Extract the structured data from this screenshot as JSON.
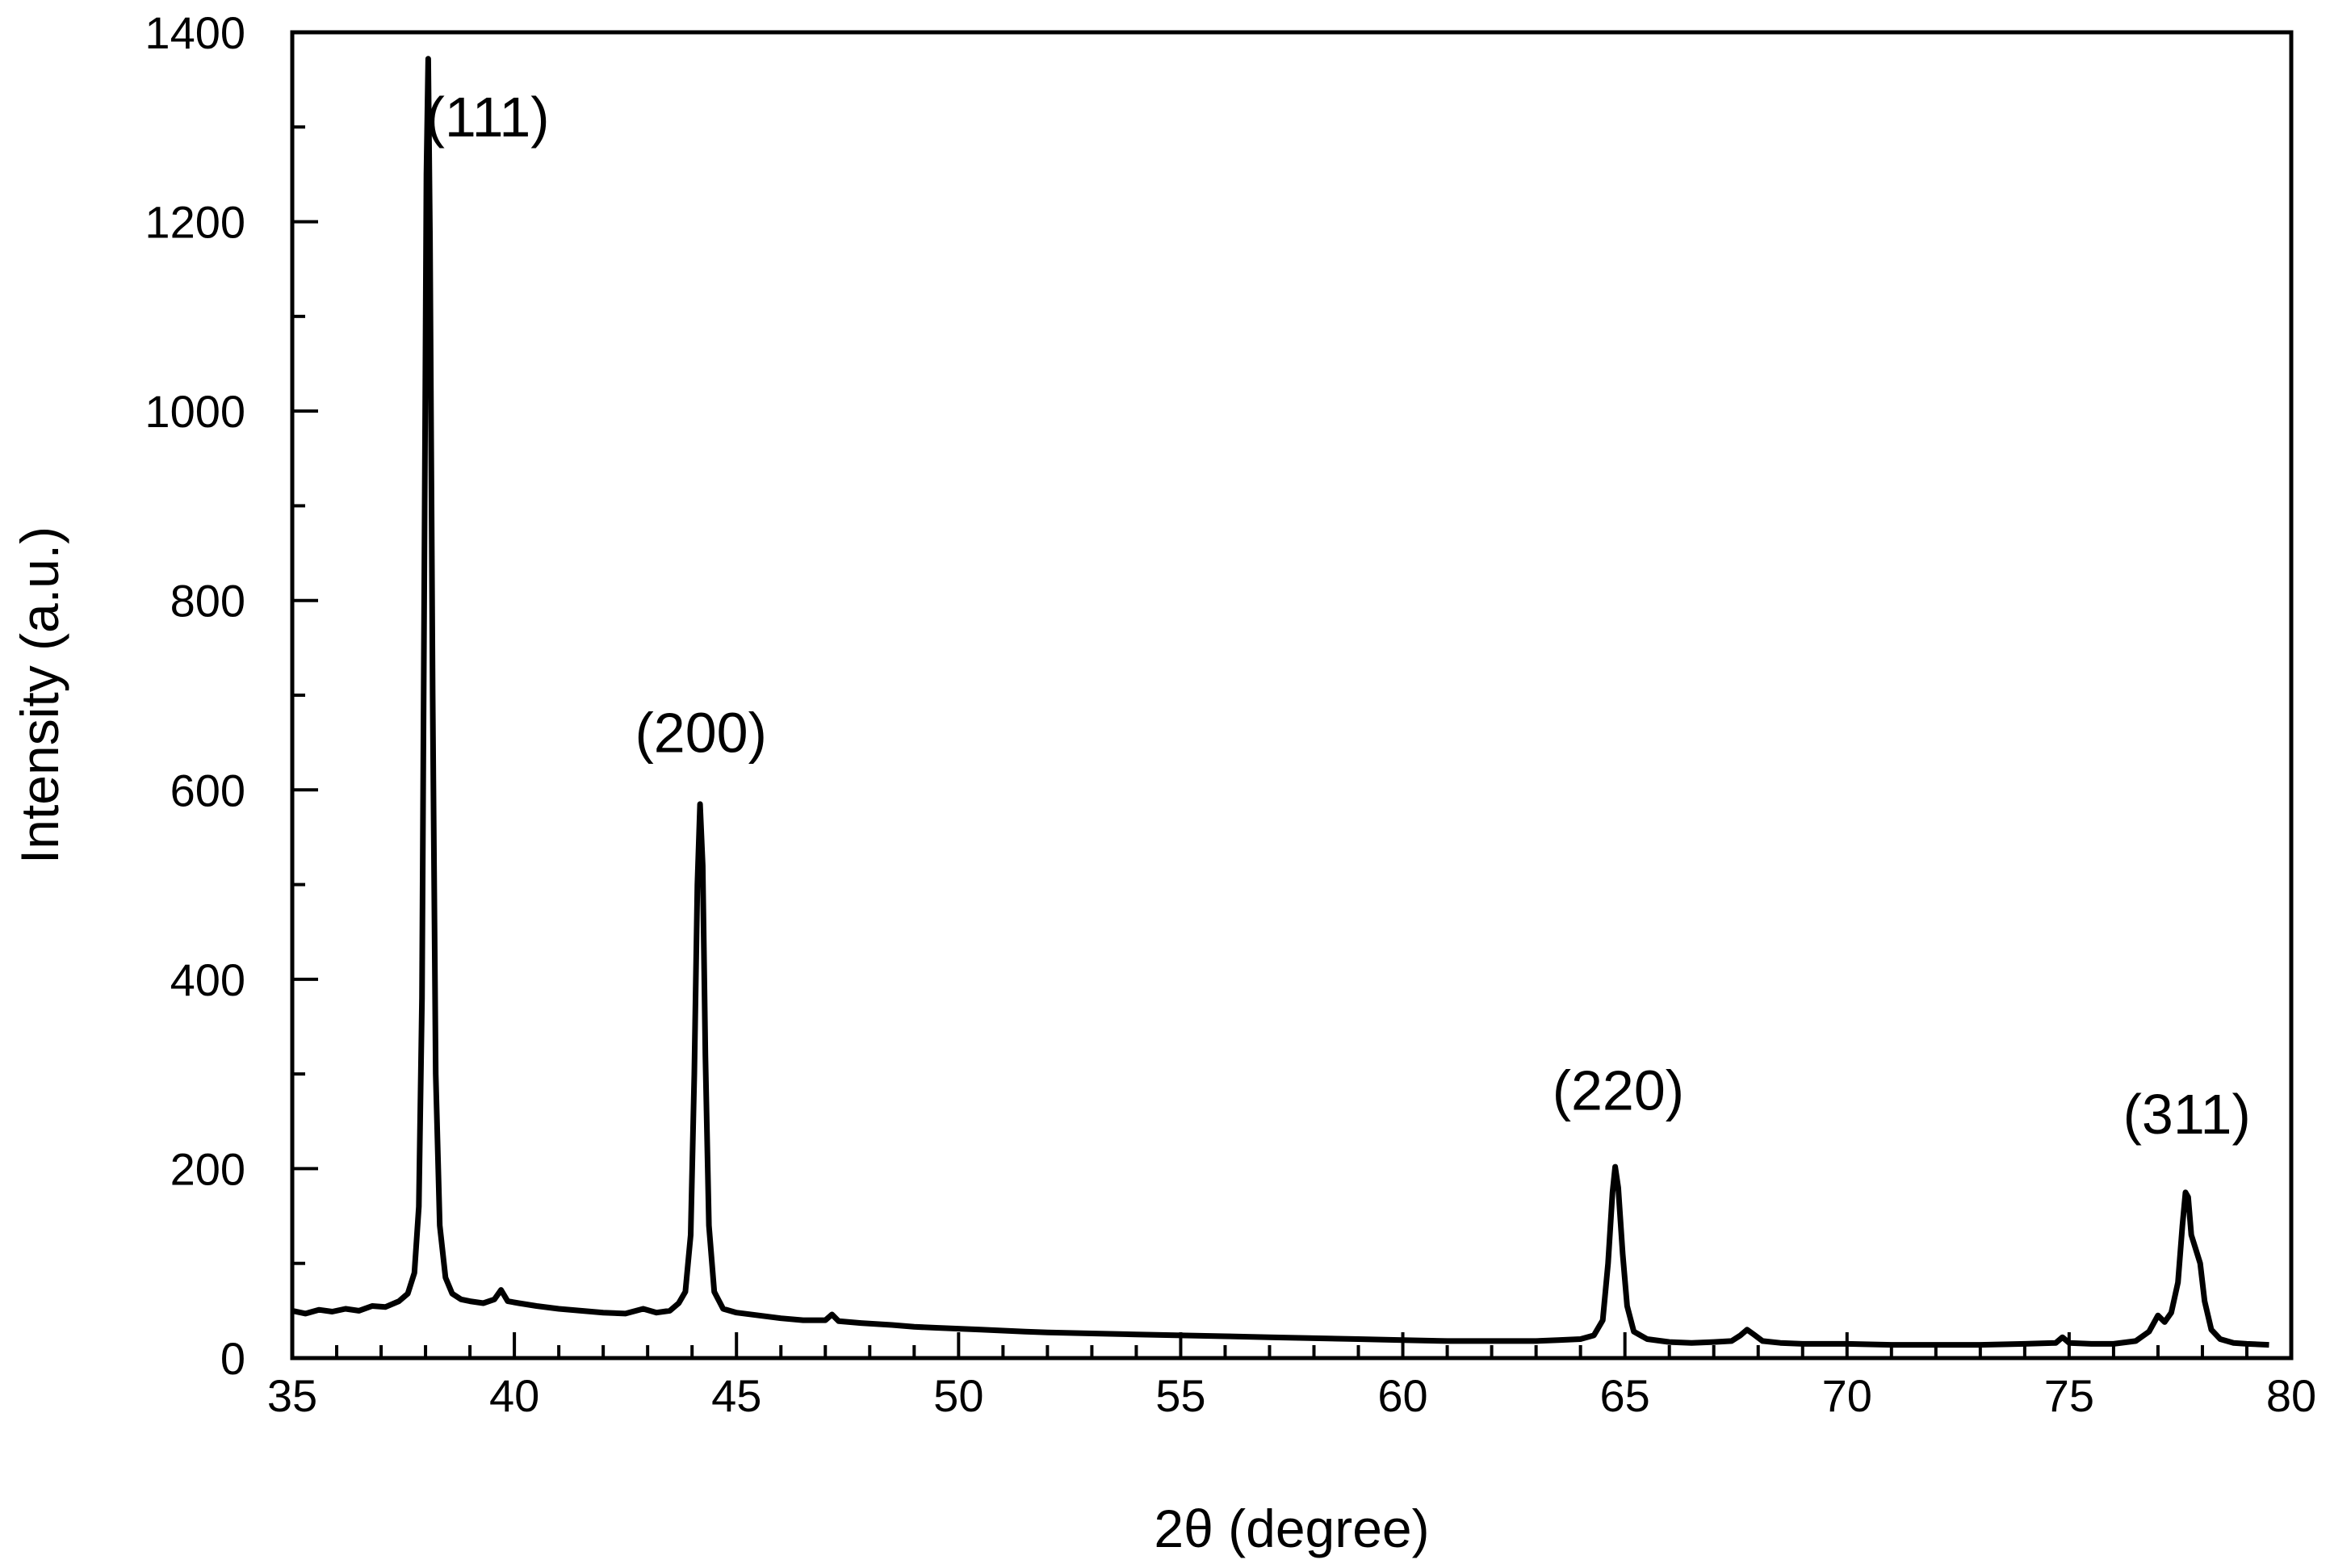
{
  "chart_data": {
    "type": "line",
    "xlabel": "2θ (degree)",
    "ylabel": "Intensity (a.u.)",
    "xlim": [
      35,
      80
    ],
    "ylim": [
      0,
      1400
    ],
    "x_ticks": [
      35,
      40,
      45,
      50,
      55,
      60,
      65,
      70,
      75,
      80
    ],
    "y_ticks": [
      0,
      200,
      400,
      600,
      800,
      1000,
      1200,
      1400
    ],
    "x_tick_labels": [
      "35",
      "40",
      "45",
      "50",
      "55",
      "60",
      "65",
      "70",
      "75",
      "80"
    ],
    "y_tick_labels": [
      "0",
      "200",
      "400",
      "600",
      "800",
      "1000",
      "1200",
      "1400"
    ],
    "grid": false,
    "series": [
      {
        "color": "#000000",
        "points": [
          [
            35.0,
            50
          ],
          [
            35.3,
            47
          ],
          [
            35.6,
            51
          ],
          [
            35.9,
            49
          ],
          [
            36.2,
            52
          ],
          [
            36.5,
            50
          ],
          [
            36.8,
            55
          ],
          [
            37.1,
            54
          ],
          [
            37.4,
            60
          ],
          [
            37.6,
            68
          ],
          [
            37.75,
            90
          ],
          [
            37.85,
            160
          ],
          [
            37.92,
            380
          ],
          [
            37.97,
            800
          ],
          [
            38.02,
            1250
          ],
          [
            38.06,
            1372
          ],
          [
            38.1,
            1180
          ],
          [
            38.16,
            700
          ],
          [
            38.23,
            300
          ],
          [
            38.32,
            140
          ],
          [
            38.45,
            85
          ],
          [
            38.6,
            68
          ],
          [
            38.8,
            62
          ],
          [
            39.0,
            60
          ],
          [
            39.3,
            58
          ],
          [
            39.55,
            62
          ],
          [
            39.7,
            72
          ],
          [
            39.85,
            60
          ],
          [
            40.1,
            58
          ],
          [
            40.5,
            55
          ],
          [
            41.0,
            52
          ],
          [
            41.5,
            50
          ],
          [
            42.0,
            48
          ],
          [
            42.5,
            47
          ],
          [
            42.9,
            52
          ],
          [
            43.2,
            48
          ],
          [
            43.5,
            50
          ],
          [
            43.7,
            58
          ],
          [
            43.85,
            70
          ],
          [
            43.97,
            130
          ],
          [
            44.05,
            300
          ],
          [
            44.12,
            500
          ],
          [
            44.18,
            585
          ],
          [
            44.24,
            520
          ],
          [
            44.3,
            320
          ],
          [
            44.38,
            140
          ],
          [
            44.5,
            70
          ],
          [
            44.7,
            52
          ],
          [
            45.0,
            48
          ],
          [
            45.5,
            45
          ],
          [
            46.0,
            42
          ],
          [
            46.5,
            40
          ],
          [
            47.0,
            40
          ],
          [
            47.15,
            46
          ],
          [
            47.3,
            39
          ],
          [
            47.8,
            37
          ],
          [
            48.5,
            35
          ],
          [
            49.0,
            33
          ],
          [
            49.5,
            32
          ],
          [
            50.0,
            31
          ],
          [
            50.5,
            30
          ],
          [
            51.0,
            29
          ],
          [
            51.5,
            28
          ],
          [
            52.0,
            27
          ],
          [
            53.0,
            26
          ],
          [
            54.0,
            25
          ],
          [
            55.0,
            24
          ],
          [
            56.0,
            23
          ],
          [
            57.0,
            22
          ],
          [
            58.0,
            21
          ],
          [
            59.0,
            20
          ],
          [
            60.0,
            19
          ],
          [
            61.0,
            18
          ],
          [
            62.0,
            18
          ],
          [
            63.0,
            18
          ],
          [
            63.5,
            19
          ],
          [
            64.0,
            20
          ],
          [
            64.3,
            24
          ],
          [
            64.5,
            40
          ],
          [
            64.62,
            100
          ],
          [
            64.72,
            175
          ],
          [
            64.78,
            202
          ],
          [
            64.85,
            180
          ],
          [
            64.95,
            110
          ],
          [
            65.05,
            55
          ],
          [
            65.2,
            28
          ],
          [
            65.5,
            20
          ],
          [
            66.0,
            17
          ],
          [
            66.5,
            16
          ],
          [
            67.0,
            17
          ],
          [
            67.4,
            18
          ],
          [
            67.6,
            24
          ],
          [
            67.75,
            30
          ],
          [
            67.9,
            25
          ],
          [
            68.1,
            18
          ],
          [
            68.5,
            16
          ],
          [
            69.0,
            15
          ],
          [
            70.0,
            15
          ],
          [
            71.0,
            14
          ],
          [
            72.0,
            14
          ],
          [
            73.0,
            14
          ],
          [
            74.0,
            15
          ],
          [
            74.7,
            16
          ],
          [
            74.85,
            22
          ],
          [
            75.0,
            16
          ],
          [
            75.5,
            15
          ],
          [
            76.0,
            15
          ],
          [
            76.5,
            18
          ],
          [
            76.8,
            28
          ],
          [
            77.0,
            45
          ],
          [
            77.15,
            38
          ],
          [
            77.3,
            48
          ],
          [
            77.45,
            80
          ],
          [
            77.55,
            140
          ],
          [
            77.62,
            175
          ],
          [
            77.68,
            170
          ],
          [
            77.75,
            130
          ],
          [
            77.85,
            115
          ],
          [
            77.95,
            100
          ],
          [
            78.05,
            60
          ],
          [
            78.2,
            30
          ],
          [
            78.4,
            20
          ],
          [
            78.7,
            16
          ],
          [
            79.0,
            15
          ],
          [
            79.5,
            14
          ]
        ]
      }
    ],
    "annotations": [
      {
        "text": "(111)",
        "x": 39.4,
        "y": 1290
      },
      {
        "text": "(200)",
        "x": 44.2,
        "y": 640
      },
      {
        "text": "(220)",
        "x": 64.85,
        "y": 262
      },
      {
        "text": "(311)",
        "x": 77.65,
        "y": 237
      }
    ]
  }
}
